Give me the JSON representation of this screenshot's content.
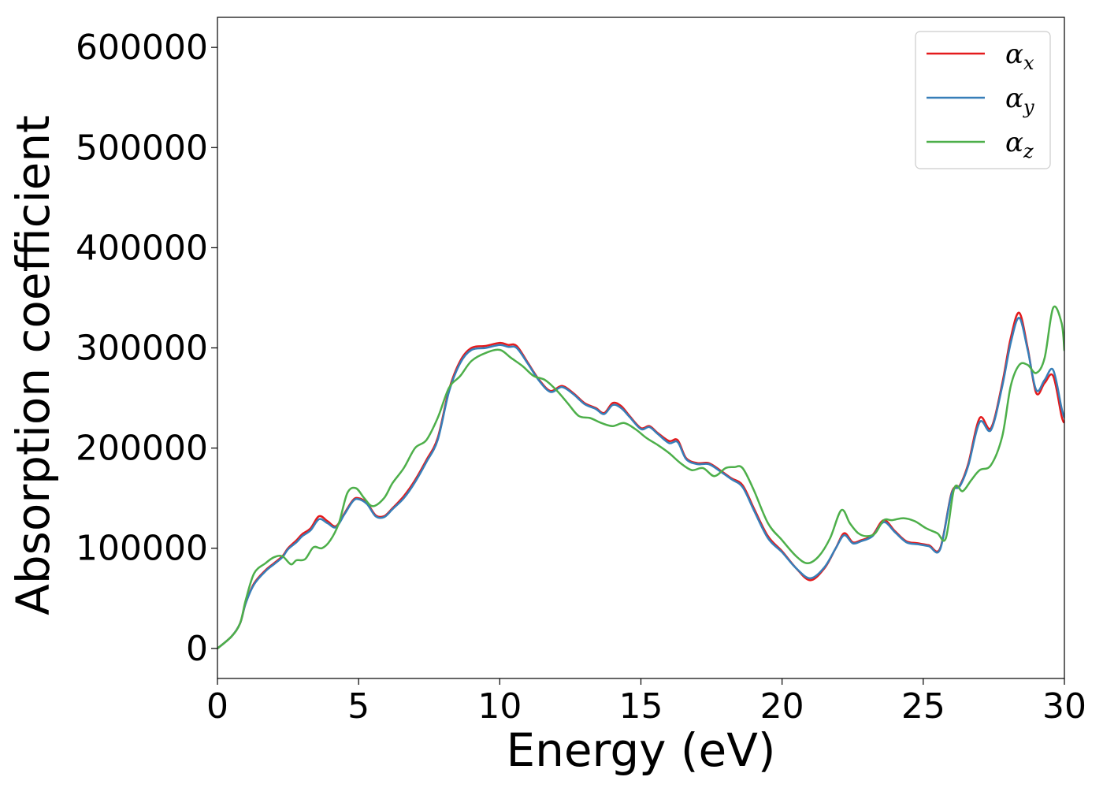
{
  "chart_data": {
    "type": "line",
    "title": "",
    "xlabel": "Energy (eV)",
    "ylabel": "Absorption coefficient",
    "xlim": [
      0,
      30
    ],
    "ylim": [
      -30000,
      630000
    ],
    "grid": false,
    "legend_position": "top-right",
    "x_ticks": [
      0,
      5,
      10,
      15,
      20,
      25,
      30
    ],
    "x_tick_labels": [
      "0",
      "5",
      "10",
      "15",
      "20",
      "25",
      "30"
    ],
    "y_ticks": [
      0,
      100000,
      200000,
      300000,
      400000,
      500000,
      600000
    ],
    "y_tick_labels": [
      "0",
      "100000",
      "200000",
      "300000",
      "400000",
      "500000",
      "600000"
    ],
    "series": [
      {
        "name": "αx",
        "symbol": "α",
        "subscript": "x",
        "color": "#e41a1c",
        "x": [
          0,
          0.5,
          0.8,
          1.0,
          1.3,
          1.7,
          2.0,
          2.3,
          2.5,
          2.8,
          3.0,
          3.3,
          3.6,
          3.9,
          4.2,
          4.5,
          4.8,
          5.0,
          5.3,
          5.6,
          5.9,
          6.2,
          6.6,
          7.0,
          7.4,
          7.8,
          8.2,
          8.6,
          9.0,
          9.5,
          10.0,
          10.3,
          10.6,
          11.0,
          11.4,
          11.8,
          12.2,
          12.6,
          13.0,
          13.4,
          13.7,
          14.0,
          14.3,
          14.6,
          15.0,
          15.3,
          15.6,
          16.0,
          16.3,
          16.6,
          17.0,
          17.4,
          17.8,
          18.2,
          18.6,
          19.0,
          19.5,
          20.0,
          20.5,
          21.0,
          21.5,
          21.9,
          22.2,
          22.5,
          22.8,
          23.2,
          23.6,
          24.0,
          24.4,
          24.8,
          25.2,
          25.6,
          26.0,
          26.3,
          26.6,
          27.0,
          27.4,
          27.8,
          28.1,
          28.4,
          28.7,
          29.0,
          29.3,
          29.6,
          29.9,
          30.0
        ],
        "y": [
          0,
          12000,
          25000,
          45000,
          65000,
          78000,
          85000,
          92000,
          100000,
          108000,
          114000,
          120000,
          132000,
          127000,
          122000,
          135000,
          148000,
          150000,
          145000,
          133000,
          132000,
          140000,
          152000,
          168000,
          188000,
          210000,
          258000,
          287000,
          300000,
          302000,
          305000,
          303000,
          302000,
          285000,
          268000,
          257000,
          262000,
          255000,
          245000,
          240000,
          235000,
          245000,
          242000,
          232000,
          220000,
          222000,
          215000,
          207000,
          208000,
          190000,
          185000,
          185000,
          178000,
          170000,
          163000,
          140000,
          112000,
          97000,
          80000,
          68000,
          80000,
          100000,
          115000,
          106000,
          108000,
          113000,
          128000,
          117000,
          107000,
          105000,
          103000,
          100000,
          155000,
          163000,
          185000,
          230000,
          220000,
          265000,
          310000,
          335000,
          300000,
          255000,
          265000,
          272000,
          232000,
          225000
        ]
      },
      {
        "name": "αy",
        "symbol": "α",
        "subscript": "y",
        "color": "#377eb8",
        "x": [
          0,
          0.5,
          0.8,
          1.0,
          1.3,
          1.7,
          2.0,
          2.3,
          2.5,
          2.8,
          3.0,
          3.3,
          3.6,
          3.9,
          4.2,
          4.5,
          4.8,
          5.0,
          5.3,
          5.6,
          5.9,
          6.2,
          6.6,
          7.0,
          7.4,
          7.8,
          8.2,
          8.6,
          9.0,
          9.5,
          10.0,
          10.3,
          10.6,
          11.0,
          11.4,
          11.8,
          12.2,
          12.6,
          13.0,
          13.4,
          13.7,
          14.0,
          14.3,
          14.6,
          15.0,
          15.3,
          15.6,
          16.0,
          16.3,
          16.6,
          17.0,
          17.4,
          17.8,
          18.2,
          18.6,
          19.0,
          19.5,
          20.0,
          20.5,
          21.0,
          21.5,
          21.9,
          22.2,
          22.5,
          22.8,
          23.2,
          23.6,
          24.0,
          24.4,
          24.8,
          25.2,
          25.6,
          26.0,
          26.3,
          26.6,
          27.0,
          27.4,
          27.8,
          28.1,
          28.4,
          28.7,
          29.0,
          29.3,
          29.6,
          29.9,
          30.0
        ],
        "y": [
          0,
          12000,
          25000,
          45000,
          64000,
          77000,
          84000,
          91000,
          99000,
          106000,
          112000,
          118000,
          129000,
          125000,
          121000,
          134000,
          147000,
          149000,
          144000,
          132000,
          131000,
          139000,
          150000,
          166000,
          186000,
          208000,
          256000,
          285000,
          298000,
          300000,
          303000,
          301000,
          300000,
          284000,
          267000,
          256000,
          261000,
          254000,
          244000,
          239000,
          234000,
          243000,
          240000,
          231000,
          219000,
          221000,
          214000,
          205000,
          206000,
          189000,
          184000,
          184000,
          177000,
          169000,
          161000,
          138000,
          110000,
          96000,
          80000,
          70000,
          81000,
          100000,
          113000,
          105000,
          107000,
          112000,
          126000,
          116000,
          106000,
          104000,
          102000,
          99000,
          154000,
          162000,
          183000,
          226000,
          218000,
          262000,
          305000,
          330000,
          298000,
          258000,
          268000,
          278000,
          240000,
          230000
        ]
      },
      {
        "name": "αz",
        "symbol": "α",
        "subscript": "z",
        "color": "#4daf4a",
        "x": [
          0,
          0.5,
          0.8,
          1.0,
          1.3,
          1.7,
          2.0,
          2.3,
          2.6,
          2.8,
          3.1,
          3.4,
          3.7,
          4.0,
          4.3,
          4.6,
          4.9,
          5.2,
          5.5,
          5.9,
          6.2,
          6.6,
          7.0,
          7.4,
          7.8,
          8.2,
          8.6,
          9.0,
          9.5,
          10.0,
          10.4,
          10.8,
          11.2,
          11.6,
          12.0,
          12.4,
          12.8,
          13.2,
          13.6,
          14.0,
          14.4,
          14.8,
          15.2,
          15.6,
          16.0,
          16.4,
          16.8,
          17.2,
          17.6,
          18.0,
          18.3,
          18.6,
          19.0,
          19.5,
          20.0,
          20.5,
          20.9,
          21.3,
          21.7,
          22.1,
          22.4,
          22.7,
          23.0,
          23.3,
          23.6,
          23.9,
          24.3,
          24.7,
          25.1,
          25.5,
          25.8,
          26.1,
          26.4,
          26.7,
          27.0,
          27.4,
          27.8,
          28.1,
          28.4,
          28.7,
          29.0,
          29.3,
          29.6,
          29.9,
          30.0
        ],
        "y": [
          0,
          12000,
          25000,
          48000,
          75000,
          85000,
          91000,
          92000,
          84000,
          88000,
          89000,
          101000,
          100000,
          108000,
          125000,
          155000,
          160000,
          150000,
          142000,
          150000,
          165000,
          180000,
          200000,
          208000,
          230000,
          260000,
          272000,
          287000,
          295000,
          298000,
          290000,
          282000,
          272000,
          268000,
          258000,
          245000,
          232000,
          230000,
          225000,
          222000,
          225000,
          219000,
          210000,
          203000,
          195000,
          185000,
          178000,
          180000,
          172000,
          180000,
          181000,
          180000,
          158000,
          125000,
          108000,
          92000,
          85000,
          92000,
          110000,
          138000,
          125000,
          115000,
          112000,
          115000,
          128000,
          128000,
          130000,
          127000,
          120000,
          115000,
          110000,
          160000,
          157000,
          168000,
          178000,
          183000,
          212000,
          262000,
          283000,
          283000,
          275000,
          290000,
          340000,
          325000,
          297000
        ]
      }
    ]
  }
}
